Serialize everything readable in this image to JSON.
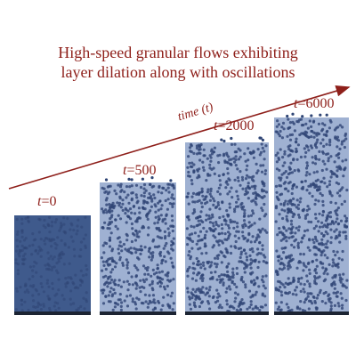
{
  "title": {
    "line1": "High-speed granular flows exhibiting",
    "line2": "layer dilation along with oscillations"
  },
  "axis_label": "time (t)",
  "snapshots": [
    {
      "t_prefix": "t",
      "t_value": "=0"
    },
    {
      "t_prefix": "t",
      "t_value": "=500"
    },
    {
      "t_prefix": "t",
      "t_value": "=2000"
    },
    {
      "t_prefix": "t",
      "t_value": "=6000"
    }
  ],
  "colors": {
    "accent": "#8e1f1a",
    "dense_layer": "#3f5a8c",
    "dilated_fill": "#9fb1d2",
    "particle": "#2f4575"
  }
}
